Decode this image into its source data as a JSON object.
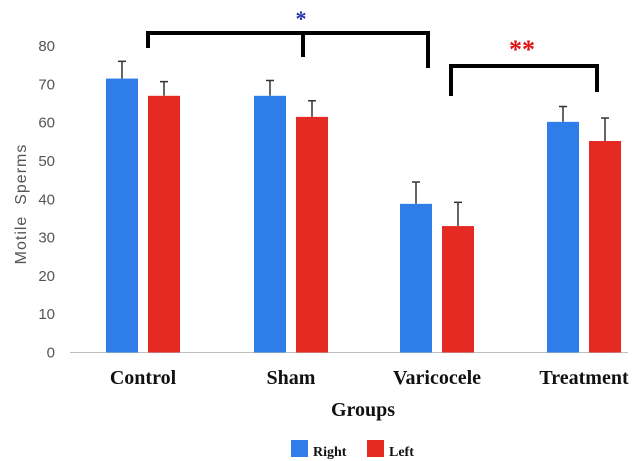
{
  "chart_data": {
    "type": "bar",
    "categories": [
      "Control",
      "Sham",
      "Varicocele",
      "Treatment"
    ],
    "series": [
      {
        "name": "Right",
        "color": "#2E7DE8",
        "values": [
          71.5,
          67,
          38.8,
          60.2
        ],
        "errors": [
          4.5,
          4,
          5.7,
          4
        ]
      },
      {
        "name": "Left",
        "color": "#E52A24",
        "values": [
          67,
          61.5,
          33,
          55.2
        ],
        "errors": [
          3.7,
          4.2,
          6.2,
          6
        ]
      }
    ],
    "xlabel": "Groups",
    "ylabel": "Motile  Sperms",
    "ylim": [
      0,
      80
    ],
    "yticks": [
      0,
      10,
      20,
      30,
      40,
      50,
      60,
      70,
      80
    ],
    "grid": false,
    "legend_position": "bottom-center",
    "annotations": [
      {
        "text": "*",
        "color": "#2233AA",
        "between": [
          "Control",
          "Varicocele"
        ]
      },
      {
        "text": "**",
        "color": "#DD1111",
        "between": [
          "Varicocele",
          "Treatment"
        ]
      }
    ]
  }
}
